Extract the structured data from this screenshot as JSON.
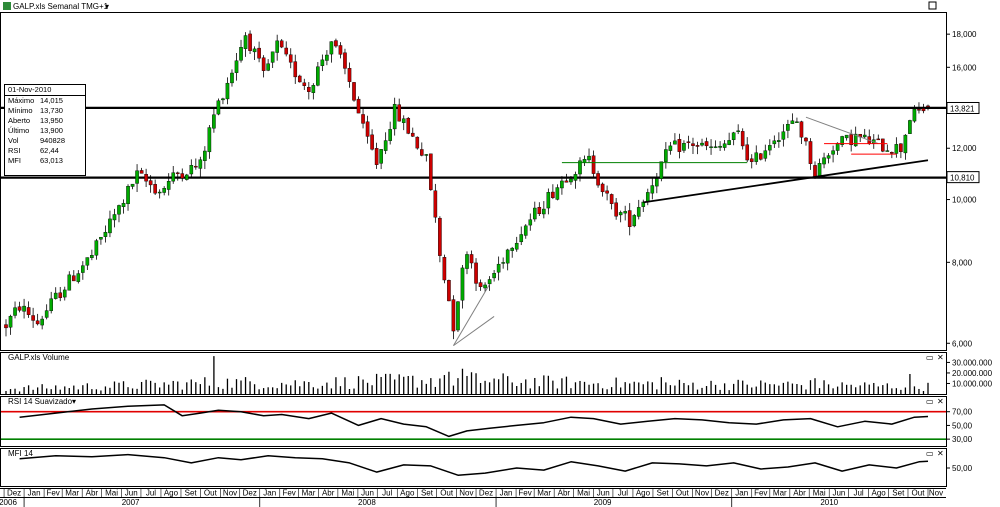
{
  "window": {
    "title": "GALP.xls Semanal TMG+1",
    "app_icon": "spreadsheet-icon",
    "dropdown_icon": "triangle-down-icon",
    "maximize_icon": "maximize-icon"
  },
  "info_box": {
    "date": "01-Nov-2010",
    "rows": [
      {
        "label": "Máximo",
        "value": "14,015"
      },
      {
        "label": "Mínimo",
        "value": "13,730"
      },
      {
        "label": "Aberto",
        "value": "13,950"
      },
      {
        "label": "Último",
        "value": "13,900"
      },
      {
        "label": "Vol",
        "value": "940828"
      },
      {
        "label": "RSI",
        "value": "62,44"
      },
      {
        "label": "MFI",
        "value": "63,013"
      }
    ]
  },
  "chart_data": [
    {
      "type": "candlestick",
      "panel": "price",
      "title": "GALP.xls Semanal TMG+1",
      "y_scale": "log",
      "ylim": [
        5.9,
        19.2
      ],
      "y_ticks": [
        {
          "value": 18,
          "label": "18,000"
        },
        {
          "value": 16,
          "label": "16,000"
        },
        {
          "value": 14,
          "label": "14,000"
        },
        {
          "value": 12,
          "label": "12,000"
        },
        {
          "value": 10,
          "label": "10,000"
        },
        {
          "value": 8,
          "label": "8,000"
        },
        {
          "value": 6,
          "label": "6,000"
        }
      ],
      "price_badges": [
        {
          "value": 13.821,
          "label": "13,821"
        },
        {
          "value": 10.81,
          "label": "10,810"
        }
      ],
      "horizontal_lines": [
        13.85,
        10.81
      ],
      "x_start": "2006-12-04",
      "x_end": "2010-11-01",
      "last_bar": {
        "open": 13.95,
        "high": 14.015,
        "low": 13.73,
        "close": 13.9
      },
      "path_points": [
        [
          "2006-12-04",
          6.4
        ],
        [
          "2006-12-25",
          6.85
        ],
        [
          "2007-01-22",
          6.45
        ],
        [
          "2007-02-26",
          7.2
        ],
        [
          "2007-04-16",
          8.2
        ],
        [
          "2007-05-28",
          9.7
        ],
        [
          "2007-06-25",
          10.9
        ],
        [
          "2007-07-30",
          10.3
        ],
        [
          "2007-08-27",
          11.0
        ],
        [
          "2007-10-01",
          11.3
        ],
        [
          "2007-10-22",
          13.5
        ],
        [
          "2007-11-19",
          15.8
        ],
        [
          "2007-12-10",
          18.0
        ],
        [
          "2008-01-07",
          15.5
        ],
        [
          "2008-01-28",
          17.3
        ],
        [
          "2008-02-18",
          16.0
        ],
        [
          "2008-03-17",
          14.8
        ],
        [
          "2008-04-21",
          17.6
        ],
        [
          "2008-05-19",
          15.2
        ],
        [
          "2008-06-09",
          12.8
        ],
        [
          "2008-06-30",
          11.4
        ],
        [
          "2008-07-28",
          13.7
        ],
        [
          "2008-08-18",
          12.8
        ],
        [
          "2008-09-15",
          11.5
        ],
        [
          "2008-10-06",
          8.2
        ],
        [
          "2008-10-27",
          6.4
        ],
        [
          "2008-11-17",
          8.4
        ],
        [
          "2008-12-08",
          7.2
        ],
        [
          "2008-12-29",
          7.7
        ],
        [
          "2009-01-26",
          8.6
        ],
        [
          "2009-03-02",
          9.5
        ],
        [
          "2009-04-20",
          10.9
        ],
        [
          "2009-05-25",
          11.5
        ],
        [
          "2009-06-29",
          9.7
        ],
        [
          "2009-07-27",
          9.3
        ],
        [
          "2009-08-24",
          10.3
        ],
        [
          "2009-09-28",
          12.0
        ],
        [
          "2009-11-02",
          12.2
        ],
        [
          "2009-12-07",
          11.9
        ],
        [
          "2010-01-11",
          12.6
        ],
        [
          "2010-02-01",
          11.3
        ],
        [
          "2010-03-08",
          12.5
        ],
        [
          "2010-04-12",
          13.2
        ],
        [
          "2010-05-10",
          11.0
        ],
        [
          "2010-06-07",
          12.1
        ],
        [
          "2010-07-12",
          12.5
        ],
        [
          "2010-08-23",
          12.1
        ],
        [
          "2010-09-20",
          12.0
        ],
        [
          "2010-10-04",
          13.4
        ],
        [
          "2010-11-01",
          13.9
        ]
      ],
      "trend_lines": [
        {
          "color": "#000000",
          "from": [
            "2009-08-17",
            9.9
          ],
          "to": [
            "2010-11-01",
            11.5
          ]
        },
        {
          "color": "#808080",
          "from": [
            "2008-10-27",
            5.95
          ],
          "to": [
            "2008-12-22",
            7.4
          ]
        },
        {
          "color": "#808080",
          "from": [
            "2008-10-27",
            5.95
          ],
          "to": [
            "2008-12-29",
            6.6
          ]
        },
        {
          "color": "#808080",
          "from": [
            "2010-04-26",
            13.4
          ],
          "to": [
            "2010-08-16",
            12.2
          ]
        },
        {
          "color": "#008000",
          "from": [
            "2009-04-13",
            11.4
          ],
          "to": [
            "2010-01-25",
            11.4
          ]
        },
        {
          "color": "#ff0000",
          "from": [
            "2010-05-24",
            12.2
          ],
          "to": [
            "2010-08-30",
            12.2
          ]
        },
        {
          "color": "#ff0000",
          "from": [
            "2010-07-05",
            11.75
          ],
          "to": [
            "2010-09-13",
            11.75
          ]
        }
      ]
    },
    {
      "type": "bar",
      "panel": "volume",
      "title": "GALP.xls Volume",
      "ylim": [
        0,
        38000000
      ],
      "y_ticks": [
        {
          "value": 30000000,
          "label": "30.000.000"
        },
        {
          "value": 20000000,
          "label": "20.000.000"
        },
        {
          "value": 10000000,
          "label": "10.000.000"
        }
      ],
      "level_points": [
        [
          "2006-12-04",
          5000000
        ],
        [
          "2007-06-01",
          8000000
        ],
        [
          "2007-11-01",
          11000000
        ],
        [
          "2008-03-01",
          10000000
        ],
        [
          "2008-07-01",
          12000000
        ],
        [
          "2008-11-01",
          14000000
        ],
        [
          "2009-04-01",
          11000000
        ],
        [
          "2009-10-01",
          9000000
        ],
        [
          "2010-04-01",
          9000000
        ],
        [
          "2010-11-01",
          7000000
        ]
      ],
      "spikes": [
        [
          "2007-10-22",
          36000000
        ],
        [
          "2008-11-10",
          24000000
        ],
        [
          "2008-10-13",
          18000000
        ],
        [
          "2009-09-14",
          16000000
        ],
        [
          "2010-10-04",
          19000000
        ],
        [
          "2010-05-10",
          15000000
        ]
      ]
    },
    {
      "type": "line",
      "panel": "rsi",
      "title": "RSI 14 Suavizado",
      "ylim": [
        20,
        90
      ],
      "y_ticks": [
        {
          "value": 70,
          "label": "70,00"
        },
        {
          "value": 50,
          "label": "50,00"
        },
        {
          "value": 30,
          "label": "30,00"
        }
      ],
      "threshold_lines": [
        {
          "value": 70,
          "color": "#e00000"
        },
        {
          "value": 30,
          "color": "#008000"
        }
      ],
      "x": [
        "2006-12-25",
        "2007-02-19",
        "2007-04-16",
        "2007-06-11",
        "2007-08-06",
        "2007-09-03",
        "2007-10-01",
        "2007-10-29",
        "2007-12-03",
        "2008-01-07",
        "2008-02-04",
        "2008-03-17",
        "2008-04-21",
        "2008-06-02",
        "2008-07-07",
        "2008-08-11",
        "2008-09-15",
        "2008-10-20",
        "2008-11-17",
        "2008-12-22",
        "2009-02-02",
        "2009-03-16",
        "2009-04-27",
        "2009-06-01",
        "2009-07-13",
        "2009-08-24",
        "2009-10-05",
        "2009-11-16",
        "2009-12-28",
        "2010-02-08",
        "2010-03-22",
        "2010-05-03",
        "2010-06-14",
        "2010-07-26",
        "2010-09-06",
        "2010-10-11",
        "2010-11-01"
      ],
      "y": [
        62,
        68,
        74,
        78,
        80,
        64,
        68,
        72,
        70,
        64,
        66,
        60,
        68,
        50,
        60,
        52,
        48,
        34,
        42,
        46,
        50,
        54,
        62,
        60,
        52,
        56,
        60,
        58,
        54,
        52,
        58,
        60,
        48,
        56,
        52,
        62,
        63
      ]
    },
    {
      "type": "line",
      "panel": "mfi",
      "title": "MFI 14",
      "ylim": [
        15,
        85
      ],
      "y_ticks": [
        {
          "value": 50,
          "label": "50,00"
        }
      ],
      "x": [
        "2006-12-25",
        "2007-02-19",
        "2007-04-16",
        "2007-06-11",
        "2007-08-06",
        "2007-09-17",
        "2007-10-29",
        "2007-12-03",
        "2008-01-14",
        "2008-02-25",
        "2008-04-07",
        "2008-05-19",
        "2008-06-30",
        "2008-08-11",
        "2008-09-22",
        "2008-11-03",
        "2008-12-15",
        "2009-02-02",
        "2009-03-16",
        "2009-04-27",
        "2009-06-08",
        "2009-07-20",
        "2009-08-31",
        "2009-10-12",
        "2009-11-23",
        "2010-01-04",
        "2010-02-15",
        "2010-03-29",
        "2010-05-10",
        "2010-06-21",
        "2010-08-02",
        "2010-09-13",
        "2010-10-18",
        "2010-11-01"
      ],
      "y": [
        68,
        74,
        72,
        76,
        70,
        60,
        70,
        66,
        74,
        70,
        68,
        60,
        42,
        56,
        54,
        36,
        40,
        50,
        46,
        62,
        54,
        44,
        60,
        58,
        54,
        60,
        48,
        52,
        60,
        44,
        56,
        50,
        62,
        63
      ]
    },
    {
      "type": "time_axis",
      "panel": "x-axis",
      "month_labels": [
        {
          "date": "2006-12-01",
          "label": "Dez"
        },
        {
          "date": "2007-01-01",
          "label": "Jan"
        },
        {
          "date": "2007-02-01",
          "label": "Fev"
        },
        {
          "date": "2007-03-01",
          "label": "Mar"
        },
        {
          "date": "2007-04-01",
          "label": "Abr"
        },
        {
          "date": "2007-05-01",
          "label": "Mai"
        },
        {
          "date": "2007-06-01",
          "label": "Jun"
        },
        {
          "date": "2007-07-01",
          "label": "Jul"
        },
        {
          "date": "2007-08-01",
          "label": "Ago"
        },
        {
          "date": "2007-09-01",
          "label": "Set"
        },
        {
          "date": "2007-10-01",
          "label": "Out"
        },
        {
          "date": "2007-11-01",
          "label": "Nov"
        },
        {
          "date": "2007-12-01",
          "label": "Dez"
        },
        {
          "date": "2008-01-01",
          "label": "Jan"
        },
        {
          "date": "2008-02-01",
          "label": "Fev"
        },
        {
          "date": "2008-03-01",
          "label": "Mar"
        },
        {
          "date": "2008-04-01",
          "label": "Abr"
        },
        {
          "date": "2008-05-01",
          "label": "Mai"
        },
        {
          "date": "2008-06-01",
          "label": "Jun"
        },
        {
          "date": "2008-07-01",
          "label": "Jul"
        },
        {
          "date": "2008-08-01",
          "label": "Ago"
        },
        {
          "date": "2008-09-01",
          "label": "Set"
        },
        {
          "date": "2008-10-01",
          "label": "Out"
        },
        {
          "date": "2008-11-01",
          "label": "Nov"
        },
        {
          "date": "2008-12-01",
          "label": "Dez"
        },
        {
          "date": "2009-01-01",
          "label": "Jan"
        },
        {
          "date": "2009-02-01",
          "label": "Fev"
        },
        {
          "date": "2009-03-01",
          "label": "Mar"
        },
        {
          "date": "2009-04-01",
          "label": "Abr"
        },
        {
          "date": "2009-05-01",
          "label": "Mai"
        },
        {
          "date": "2009-06-01",
          "label": "Jun"
        },
        {
          "date": "2009-07-01",
          "label": "Jul"
        },
        {
          "date": "2009-08-01",
          "label": "Ago"
        },
        {
          "date": "2009-09-01",
          "label": "Set"
        },
        {
          "date": "2009-10-01",
          "label": "Out"
        },
        {
          "date": "2009-11-01",
          "label": "Nov"
        },
        {
          "date": "2009-12-01",
          "label": "Dez"
        },
        {
          "date": "2010-01-01",
          "label": "Jan"
        },
        {
          "date": "2010-02-01",
          "label": "Fev"
        },
        {
          "date": "2010-03-01",
          "label": "Mar"
        },
        {
          "date": "2010-04-01",
          "label": "Abr"
        },
        {
          "date": "2010-05-01",
          "label": "Mai"
        },
        {
          "date": "2010-06-01",
          "label": "Jun"
        },
        {
          "date": "2010-07-01",
          "label": "Jul"
        },
        {
          "date": "2010-08-01",
          "label": "Ago"
        },
        {
          "date": "2010-09-01",
          "label": "Set"
        },
        {
          "date": "2010-10-01",
          "label": "Out"
        },
        {
          "date": "2010-11-01",
          "label": "Nov"
        }
      ],
      "year_labels": [
        {
          "date": "2006-12-01",
          "label": "2006"
        },
        {
          "date": "2007-06-15",
          "label": "2007"
        },
        {
          "date": "2008-06-15",
          "label": "2008"
        },
        {
          "date": "2009-06-15",
          "label": "2009"
        },
        {
          "date": "2010-06-01",
          "label": "2010"
        }
      ]
    }
  ]
}
